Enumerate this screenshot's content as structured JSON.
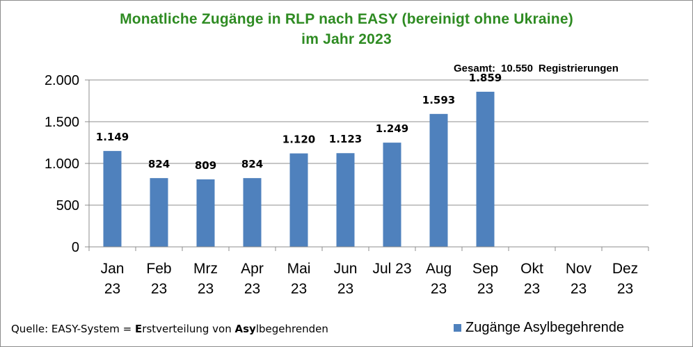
{
  "chart_data": {
    "type": "bar",
    "title": "Monatliche Zugänge in RLP nach EASY (bereinigt ohne Ukraine)",
    "subtitle": "im Jahr 2023",
    "categories": [
      "Jan 23",
      "Feb 23",
      "Mrz 23",
      "Apr 23",
      "Mai 23",
      "Jun 23",
      "Jul 23",
      "Aug 23",
      "Sep 23",
      "Okt 23",
      "Nov 23",
      "Dez 23"
    ],
    "category_lines": [
      [
        "Jan",
        "23"
      ],
      [
        "Feb",
        "23"
      ],
      [
        "Mrz",
        "23"
      ],
      [
        "Apr",
        "23"
      ],
      [
        "Mai",
        "23"
      ],
      [
        "Jun",
        "23"
      ],
      [
        "Jul 23",
        ""
      ],
      [
        "Aug",
        "23"
      ],
      [
        "Sep",
        "23"
      ],
      [
        "Okt",
        "23"
      ],
      [
        "Nov",
        "23"
      ],
      [
        "Dez",
        "23"
      ]
    ],
    "series": [
      {
        "name": "Zugänge Asylbegehrende",
        "values": [
          1149,
          824,
          809,
          824,
          1120,
          1123,
          1249,
          1593,
          1859,
          null,
          null,
          null
        ]
      }
    ],
    "data_labels": [
      "1.149",
      "824",
      "809",
      "824",
      "1.120",
      "1.123",
      "1.249",
      "1.593",
      "1.859",
      "",
      "",
      ""
    ],
    "ylim": [
      0,
      2000
    ],
    "yticks": [
      0,
      500,
      1000,
      1500,
      2000
    ],
    "ytick_labels": [
      "0",
      "500",
      "1.000",
      "1.500",
      "2.000"
    ],
    "grid": true,
    "legend_position": "bottom-right",
    "bar_color": "#4f81bd",
    "title_color": "#2e8b22"
  },
  "total_note": {
    "label": "Gesamt:",
    "value": "10.550",
    "unit": "Registrierungen"
  },
  "source_note": {
    "prefix": "Quelle: EASY-System = ",
    "bold1": "E",
    "mid1": "rstverteilung von ",
    "bold2": "Asy",
    "suffix": "lbegehrenden"
  },
  "legend_label": "Zugänge Asylbegehrende"
}
